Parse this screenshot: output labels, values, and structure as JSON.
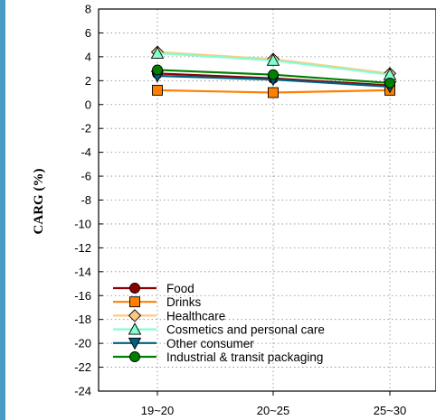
{
  "chart_data": {
    "type": "line",
    "title": "",
    "xlabel": "",
    "ylabel": "CARG (%)",
    "categories": [
      "19~20",
      "20~25",
      "25~30"
    ],
    "ylim": [
      -24,
      8
    ],
    "yticks": [
      8,
      6,
      4,
      2,
      0,
      -2,
      -4,
      -6,
      -8,
      -10,
      -12,
      -14,
      -16,
      -18,
      -20,
      -22,
      -24
    ],
    "grid": true,
    "legend_position": "bottom-left",
    "series": [
      {
        "name": "Food",
        "values": [
          2.6,
          2.2,
          1.6
        ],
        "color": "#8b0000",
        "marker": "circle"
      },
      {
        "name": "Drinks",
        "values": [
          1.2,
          1.0,
          1.2
        ],
        "color": "#ff8000",
        "marker": "square"
      },
      {
        "name": "Healthcare",
        "values": [
          4.4,
          3.8,
          2.6
        ],
        "color": "#ffc880",
        "marker": "diamond"
      },
      {
        "name": "Cosmetics and personal care",
        "values": [
          4.3,
          3.7,
          2.5
        ],
        "color": "#80ffd0",
        "marker": "triangle-up"
      },
      {
        "name": "Other consumer",
        "values": [
          2.4,
          2.1,
          1.5
        ],
        "color": "#006080",
        "marker": "triangle-down"
      },
      {
        "name": "Industrial & transit packaging",
        "values": [
          2.9,
          2.5,
          1.8
        ],
        "color": "#008000",
        "marker": "circle"
      }
    ]
  }
}
